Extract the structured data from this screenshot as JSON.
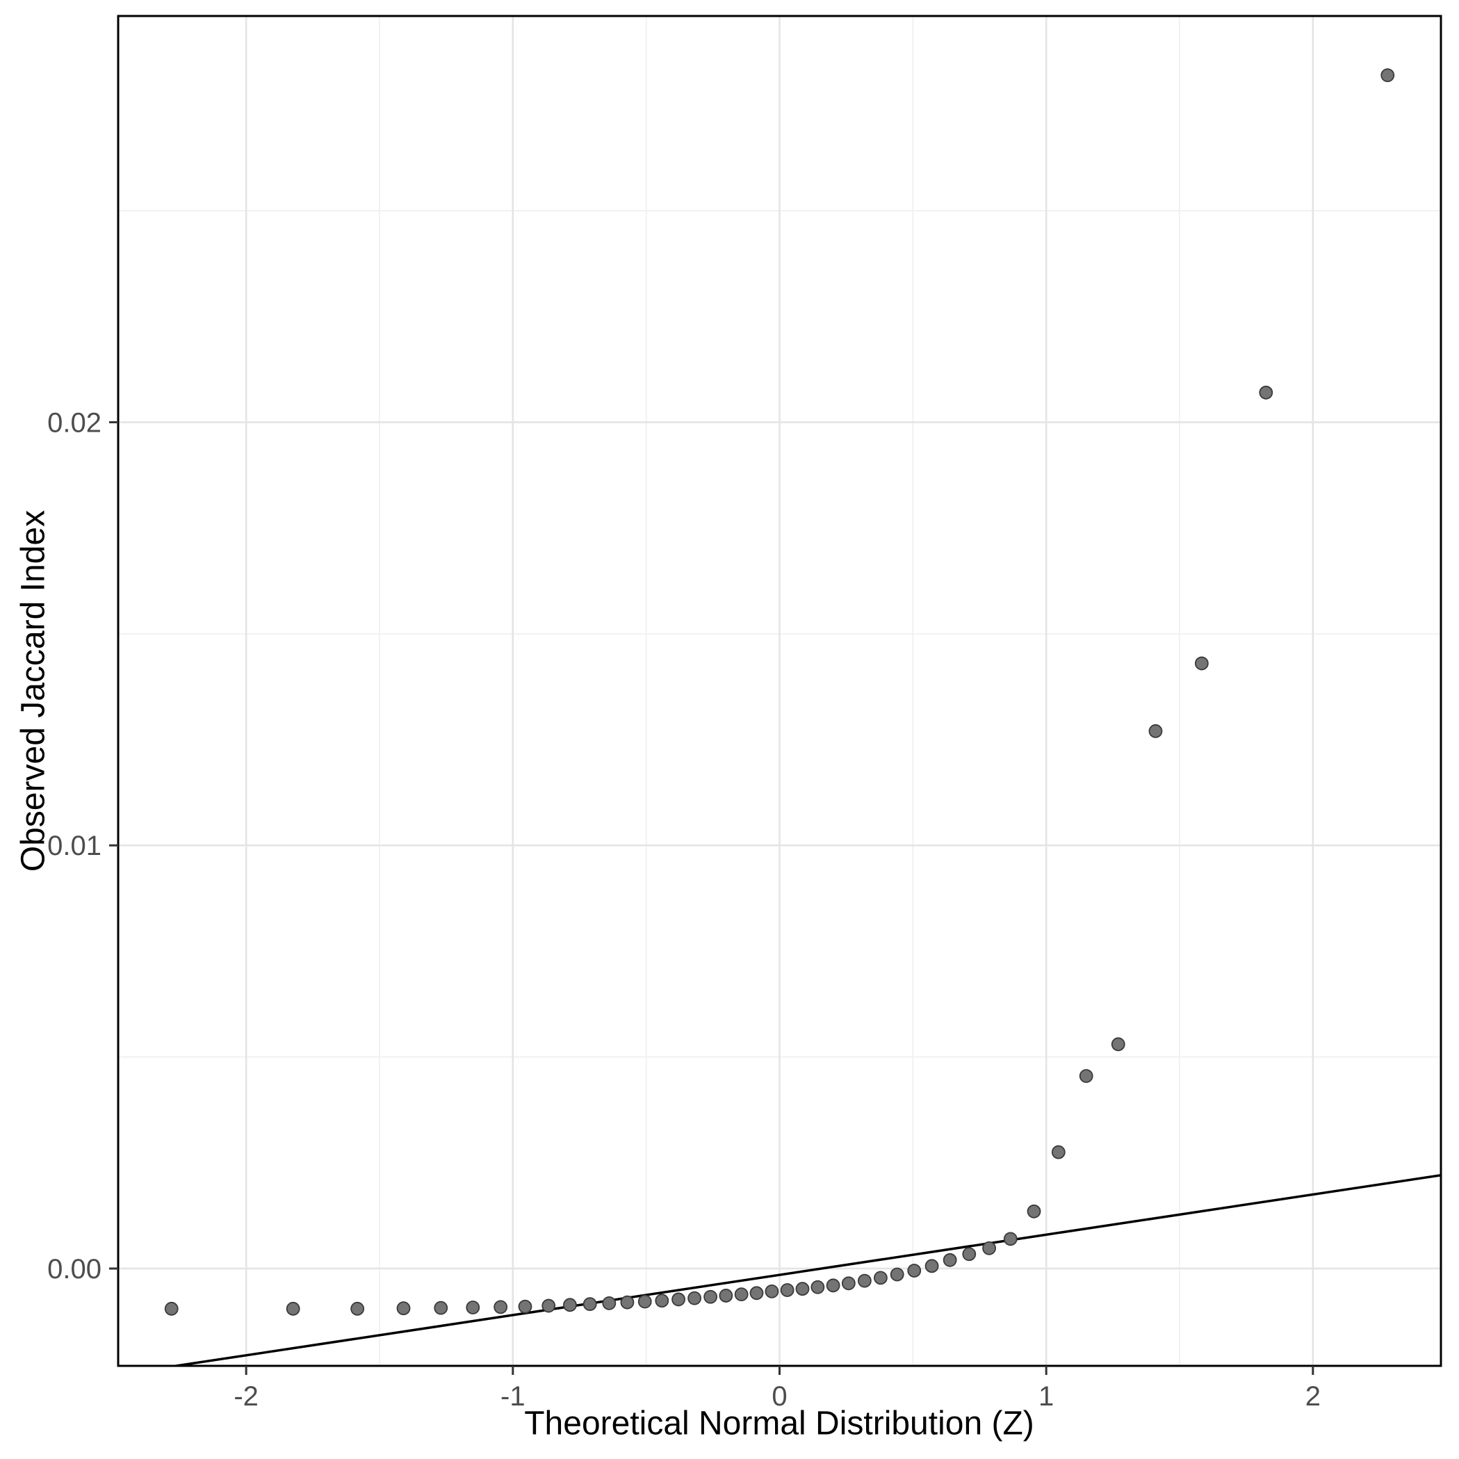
{
  "chart_data": {
    "type": "scatter",
    "title": "",
    "xlabel": "Theoretical Normal Distribution (Z)",
    "ylabel": "Observed Jaccard Index",
    "xlim": [
      -2.48,
      2.48
    ],
    "ylim": [
      -0.0023,
      0.0296
    ],
    "grid": true,
    "legend": "none",
    "x_ticks": [
      {
        "value": -2,
        "label": "-2"
      },
      {
        "value": -1,
        "label": "-1"
      },
      {
        "value": 0,
        "label": "0"
      },
      {
        "value": 1,
        "label": "1"
      },
      {
        "value": 2,
        "label": "2"
      }
    ],
    "y_ticks": [
      {
        "value": 0.0,
        "label": "0.00"
      },
      {
        "value": 0.01,
        "label": "0.01"
      },
      {
        "value": 0.02,
        "label": "0.02"
      }
    ],
    "x_minor": [
      -1.5,
      -0.5,
      0.5,
      1.5
    ],
    "y_minor": [
      0.005,
      0.015,
      0.025
    ],
    "points": [
      [
        -2.28,
        -0.00095
      ],
      [
        -1.824,
        -0.00095
      ],
      [
        -1.583,
        -0.00095
      ],
      [
        -1.41,
        -0.00094
      ],
      [
        -1.27,
        -0.00093
      ],
      [
        -1.15,
        -0.00092
      ],
      [
        -1.046,
        -0.00091
      ],
      [
        -0.954,
        -0.0009
      ],
      [
        -0.866,
        -0.00088
      ],
      [
        -0.786,
        -0.00086
      ],
      [
        -0.711,
        -0.00084
      ],
      [
        -0.639,
        -0.00082
      ],
      [
        -0.571,
        -0.0008
      ],
      [
        -0.505,
        -0.00078
      ],
      [
        -0.441,
        -0.00076
      ],
      [
        -0.379,
        -0.00073
      ],
      [
        -0.319,
        -0.0007
      ],
      [
        -0.259,
        -0.00067
      ],
      [
        -0.201,
        -0.00064
      ],
      [
        -0.143,
        -0.00061
      ],
      [
        -0.086,
        -0.00058
      ],
      [
        -0.029,
        -0.00054
      ],
      [
        0.029,
        -0.00051
      ],
      [
        0.086,
        -0.00048
      ],
      [
        0.143,
        -0.00044
      ],
      [
        0.201,
        -0.0004
      ],
      [
        0.259,
        -0.00035
      ],
      [
        0.319,
        -0.00029
      ],
      [
        0.379,
        -0.00022
      ],
      [
        0.441,
        -0.00014
      ],
      [
        0.505,
        -5e-05
      ],
      [
        0.571,
        6e-05
      ],
      [
        0.639,
        0.0002
      ],
      [
        0.711,
        0.00034
      ],
      [
        0.786,
        0.00048
      ],
      [
        0.866,
        0.0007
      ],
      [
        0.954,
        0.00135
      ],
      [
        1.046,
        0.00275
      ],
      [
        1.15,
        0.00455
      ],
      [
        1.27,
        0.0053
      ],
      [
        1.41,
        0.0127
      ],
      [
        1.583,
        0.0143
      ],
      [
        1.824,
        0.0207
      ],
      [
        2.28,
        0.0282
      ]
    ],
    "reference_line": {
      "type": "qq-line",
      "slope": 0.00095,
      "intercept": -0.00015
    },
    "style": {
      "background": "#ffffff",
      "panel_bg": "#ffffff",
      "border_color": "#000000",
      "grid_major": "#e4e4e4",
      "grid_minor": "#f0f0f0",
      "point_fill": "#747474",
      "point_stroke": "#3a3a3a",
      "line_color": "#000000",
      "tick_color": "#333333",
      "tick_label_color": "#4d4d4d"
    }
  }
}
